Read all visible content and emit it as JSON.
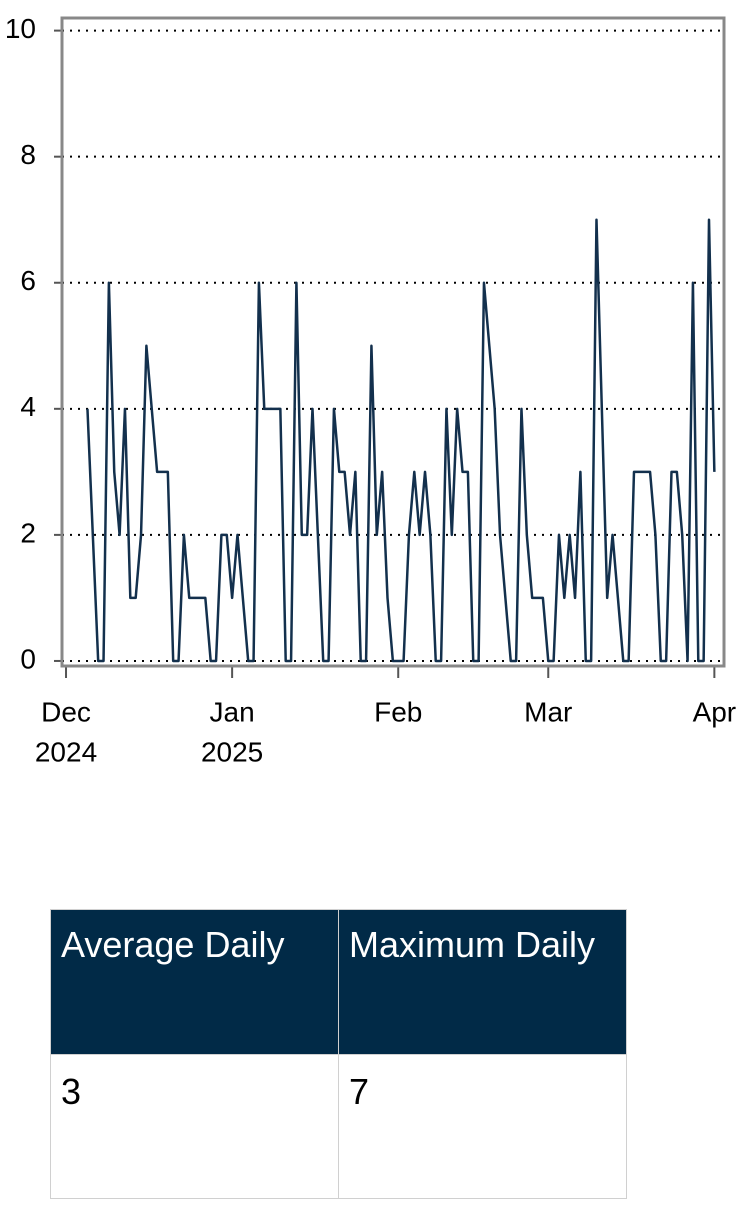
{
  "chart_data": {
    "type": "line",
    "color": "#13304d",
    "grid": true,
    "xlim": [
      -0.75,
      122.8
    ],
    "ylim": [
      -0.08,
      10.2
    ],
    "xticks": [
      {
        "value": 0,
        "label": [
          "Dec",
          "2024"
        ]
      },
      {
        "value": 31,
        "label": [
          "Jan",
          "2025"
        ]
      },
      {
        "value": 62,
        "label": [
          "Feb"
        ]
      },
      {
        "value": 90,
        "label": [
          "Mar"
        ]
      },
      {
        "value": 121,
        "label": [
          "Apr"
        ]
      }
    ],
    "yticks": [
      0,
      2,
      4,
      6,
      8,
      10
    ],
    "x": [
      4,
      5,
      6,
      7,
      8,
      9,
      10,
      11,
      12,
      13,
      14,
      15,
      16,
      17,
      18,
      19,
      20,
      21,
      22,
      23,
      24,
      25,
      26,
      27,
      28,
      29,
      30,
      31,
      32,
      33,
      34,
      35,
      36,
      37,
      38,
      39,
      40,
      41,
      42,
      43,
      44,
      45,
      46,
      47,
      48,
      49,
      50,
      51,
      52,
      53,
      54,
      55,
      56,
      57,
      58,
      59,
      60,
      61,
      62,
      63,
      64,
      65,
      66,
      67,
      68,
      69,
      70,
      71,
      72,
      73,
      74,
      75,
      76,
      77,
      78,
      79,
      80,
      81,
      82,
      83,
      84,
      85,
      86,
      87,
      88,
      89,
      90,
      91,
      92,
      93,
      94,
      95,
      96,
      97,
      98,
      99,
      100,
      101,
      102,
      103,
      104,
      105,
      106,
      107,
      108,
      109,
      110,
      111,
      112,
      113,
      114,
      115,
      116,
      117,
      118,
      119,
      120,
      121
    ],
    "values": [
      4,
      2,
      0,
      0,
      6,
      3,
      2,
      4,
      1,
      1,
      2,
      5,
      4,
      3,
      3,
      3,
      0,
      0,
      2,
      1,
      1,
      1,
      1,
      0,
      0,
      2,
      2,
      1,
      2,
      1,
      0,
      0,
      6,
      4,
      4,
      4,
      4,
      0,
      0,
      6,
      2,
      2,
      4,
      2,
      0,
      0,
      4,
      3,
      3,
      2,
      3,
      0,
      0,
      5,
      2,
      3,
      1,
      0,
      0,
      0,
      2,
      3,
      2,
      3,
      2,
      0,
      0,
      4,
      2,
      4,
      3,
      3,
      0,
      0,
      6,
      5,
      4,
      2,
      1,
      0,
      0,
      4,
      2,
      1,
      1,
      1,
      0,
      0,
      2,
      1,
      2,
      1,
      3,
      0,
      0,
      7,
      4,
      1,
      2,
      1,
      0,
      0,
      3,
      3,
      3,
      3,
      2,
      0,
      0,
      3,
      3,
      2,
      0,
      6,
      0,
      0,
      7,
      3
    ]
  },
  "table": {
    "header": [
      "Average Daily",
      "Maximum Daily"
    ],
    "rows": [
      [
        3,
        7
      ]
    ]
  }
}
